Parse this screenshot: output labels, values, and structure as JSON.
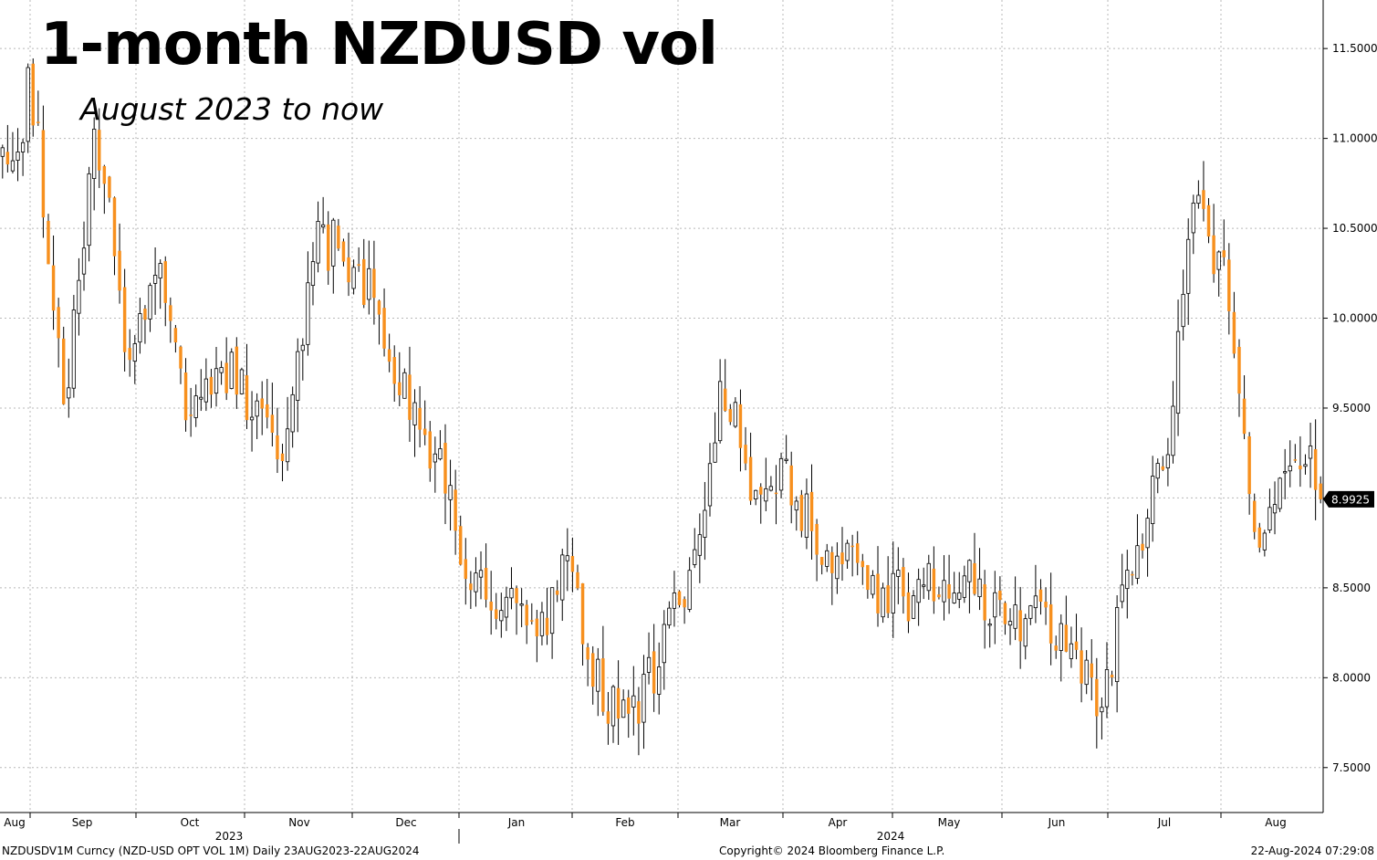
{
  "title": "1-month NZDUSD vol",
  "subtitle": "August 2023 to now",
  "footer": {
    "ticker": "NZDUSDV1M Curncy (NZD-USD OPT VOL 1M)  Daily 23AUG2023-22AUG2024",
    "copyright": "Copyright© 2024 Bloomberg Finance L.P.",
    "timestamp": "22-Aug-2024 07:29:08"
  },
  "colors": {
    "up": "#ffffff",
    "down": "#f7901e",
    "wick": "#000000",
    "grid": "#b8b8b8",
    "last_tag_bg": "#000000"
  },
  "chart_data": {
    "type": "candlestick",
    "y_ticks": [
      "7.5000",
      "8.0000",
      "8.5000",
      "9.0000",
      "9.5000",
      "10.0000",
      "10.5000",
      "11.0000",
      "11.5000"
    ],
    "ylim": [
      7.25,
      11.77
    ],
    "month_labels": [
      "Aug",
      "Sep",
      "Oct",
      "Nov",
      "Dec",
      "Jan",
      "Feb",
      "Mar",
      "Apr",
      "May",
      "Jun",
      "Jul",
      "Aug"
    ],
    "year_labels": [
      "2023",
      "2024"
    ],
    "last_value": "8.9925",
    "anchors": [
      [
        10.8,
        11.0
      ],
      [
        10.6,
        11.5
      ],
      [
        9.4,
        9.7
      ],
      [
        10.9,
        11.2
      ],
      [
        9.6,
        9.9
      ],
      [
        10.1,
        10.4
      ],
      [
        9.3,
        9.6
      ],
      [
        9.6,
        9.9
      ],
      [
        9.3,
        9.6
      ],
      [
        9.1,
        9.4
      ],
      [
        10.3,
        10.6
      ],
      [
        10.2,
        10.5
      ],
      [
        9.9,
        10.2
      ],
      [
        9.3,
        9.6
      ],
      [
        9.0,
        9.3
      ],
      [
        8.3,
        8.6
      ],
      [
        8.3,
        8.6
      ],
      [
        8.0,
        8.3
      ],
      [
        8.5,
        8.8
      ],
      [
        7.8,
        8.1
      ],
      [
        7.6,
        7.9
      ],
      [
        8.0,
        8.3
      ],
      [
        8.5,
        8.8
      ],
      [
        9.5,
        9.8
      ],
      [
        8.8,
        9.1
      ],
      [
        9.0,
        9.3
      ],
      [
        8.6,
        8.9
      ],
      [
        8.5,
        8.8
      ],
      [
        8.3,
        8.6
      ],
      [
        8.3,
        8.6
      ],
      [
        8.4,
        8.7
      ],
      [
        8.4,
        8.7
      ],
      [
        8.1,
        8.4
      ],
      [
        8.3,
        8.6
      ],
      [
        8.0,
        8.3
      ],
      [
        7.7,
        8.0
      ],
      [
        8.5,
        8.8
      ],
      [
        9.0,
        9.3
      ],
      [
        10.5,
        10.8
      ],
      [
        10.0,
        10.3
      ],
      [
        8.5,
        8.8
      ],
      [
        9.0,
        9.3
      ],
      [
        9.0,
        9.3
      ]
    ],
    "seed": 20230823,
    "count": 260
  }
}
